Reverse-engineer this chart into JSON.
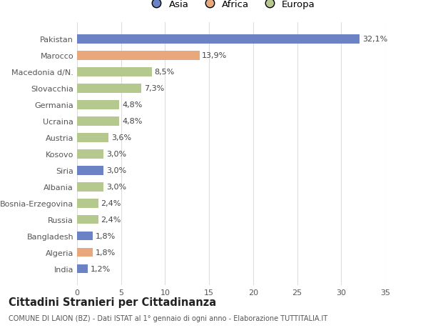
{
  "categories": [
    "India",
    "Algeria",
    "Bangladesh",
    "Russia",
    "Bosnia-Erzegovina",
    "Albania",
    "Siria",
    "Kosovo",
    "Austria",
    "Ucraina",
    "Germania",
    "Slovacchia",
    "Macedonia d/N.",
    "Marocco",
    "Pakistan"
  ],
  "values": [
    1.2,
    1.8,
    1.8,
    2.4,
    2.4,
    3.0,
    3.0,
    3.0,
    3.6,
    4.8,
    4.8,
    7.3,
    8.5,
    13.9,
    32.1
  ],
  "labels": [
    "1,2%",
    "1,8%",
    "1,8%",
    "2,4%",
    "2,4%",
    "3,0%",
    "3,0%",
    "3,0%",
    "3,6%",
    "4,8%",
    "4,8%",
    "7,3%",
    "8,5%",
    "13,9%",
    "32,1%"
  ],
  "continents": [
    "Asia",
    "Africa",
    "Asia",
    "Europa",
    "Europa",
    "Europa",
    "Asia",
    "Europa",
    "Europa",
    "Europa",
    "Europa",
    "Europa",
    "Europa",
    "Africa",
    "Asia"
  ],
  "colors": {
    "Asia": "#6b82c4",
    "Africa": "#e8a87c",
    "Europa": "#b5c98e"
  },
  "title": "Cittadini Stranieri per Cittadinanza",
  "subtitle": "COMUNE DI LAION (BZ) - Dati ISTAT al 1° gennaio di ogni anno - Elaborazione TUTTITALIA.IT",
  "xlim": [
    0,
    35
  ],
  "xticks": [
    0,
    5,
    10,
    15,
    20,
    25,
    30,
    35
  ],
  "background_color": "#ffffff",
  "grid_color": "#dddddd",
  "bar_height": 0.55,
  "label_fontsize": 8.0,
  "tick_fontsize": 8.0,
  "title_fontsize": 10.5,
  "subtitle_fontsize": 7.0,
  "legend_fontsize": 9.5
}
